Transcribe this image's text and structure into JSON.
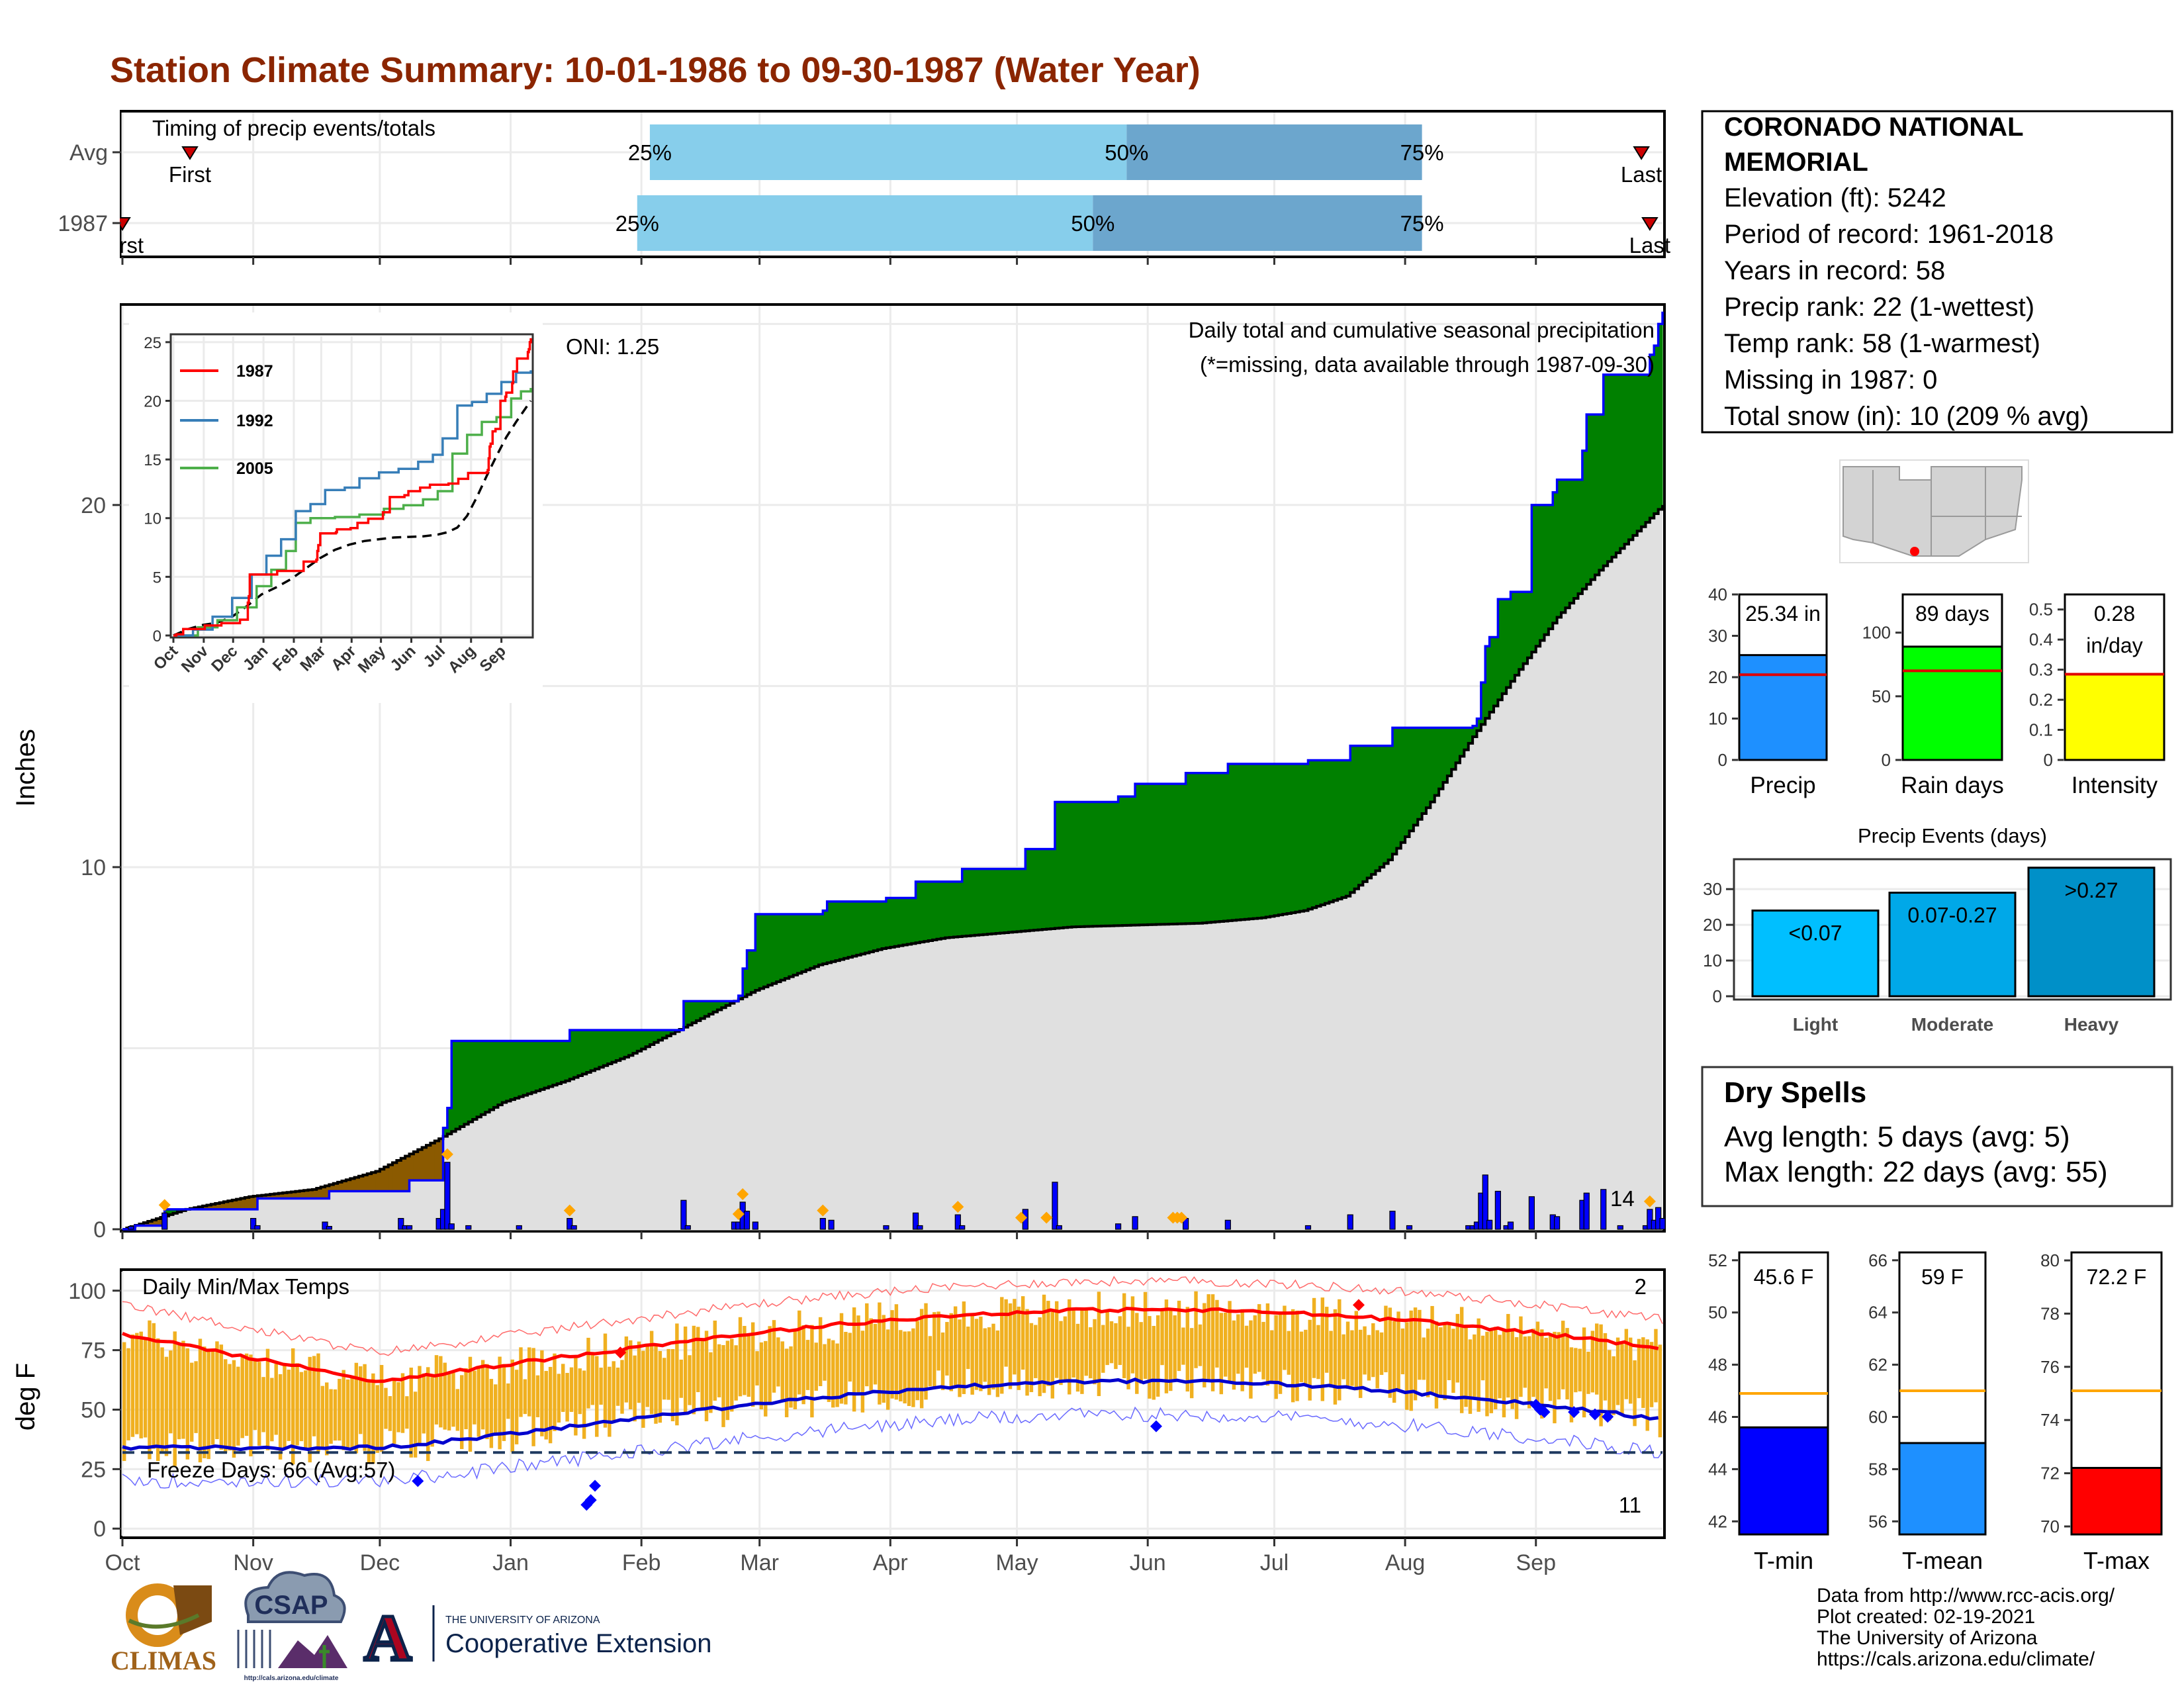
{
  "title": "Station Climate Summary: 10-01-1986 to 09-30-1987 (Water Year)",
  "colors": {
    "title": "#8B2500",
    "above_avg": "#008000",
    "below_avg": "#8B5A00",
    "climatology": "#E0E0E0",
    "daily_bar": "#0000FF",
    "pct_light": "#87CEEB",
    "pct_dark": "#6CA6CD",
    "temp_bar": "#F0B020",
    "tmax_avg": "#FF0000",
    "tmin_avg": "#0000CD",
    "dry_spells": "#B22222"
  },
  "station": {
    "name_line1": "CORONADO NATIONAL",
    "name_line2": "MEMORIAL",
    "lines": [
      "Elevation (ft): 5242",
      "Period of record: 1961-2018",
      "Years in record: 58",
      "Precip rank: 22 (1-wettest)",
      "Temp rank: 58 (1-warmest)",
      "Missing in 1987: 0",
      "Total snow (in): 10 (209 % avg)"
    ]
  },
  "timing": {
    "title": "Timing of precip events/totals",
    "rows": [
      {
        "label": "Avg",
        "first_doy": 16,
        "first_label": "First",
        "last_doy": 360,
        "last_label": "Last",
        "p25_doy": 125,
        "p50_doy": 238,
        "p75_doy": 308
      },
      {
        "label": "1987",
        "first_doy": 0,
        "first_label": "First",
        "last_doy": 362,
        "last_label": "Last",
        "p25_doy": 122,
        "p50_doy": 230,
        "p75_doy": 308
      }
    ],
    "pct_labels": [
      "25%",
      "50%",
      "75%"
    ]
  },
  "precip_panel": {
    "ylabel": "Inches",
    "ylim": [
      0,
      25.5
    ],
    "yticks": [
      0,
      10,
      20
    ],
    "label_main": "Daily total and cumulative seasonal precipitation",
    "label_missing": "(*=missing, data available through 1987-09-30)",
    "oni": "ONI: 1.25",
    "count_label": "14",
    "cumulative_observed": [
      [
        0,
        0
      ],
      [
        10,
        0.55
      ],
      [
        31,
        0.55
      ],
      [
        32,
        0.85
      ],
      [
        48,
        0.85
      ],
      [
        49,
        1.05
      ],
      [
        80,
        1.05
      ],
      [
        81,
        2.8
      ],
      [
        75,
        2.8
      ],
      [
        76,
        3.35
      ],
      [
        77,
        5.2
      ],
      [
        105,
        5.2
      ],
      [
        106,
        5.5
      ],
      [
        107,
        5.5
      ],
      [
        108,
        5.5
      ],
      [
        132,
        5.5
      ],
      [
        133,
        5.5
      ],
      [
        107,
        5.5
      ],
      [
        108,
        6.3
      ],
      [
        124,
        6.3
      ],
      [
        125,
        6.3
      ],
      [
        126,
        6.3
      ],
      [
        145,
        6.3
      ],
      [
        146,
        6.3
      ],
      [
        147,
        6.3
      ],
      [
        146,
        6.45
      ],
      [
        147,
        7.2
      ],
      [
        148,
        7.7
      ],
      [
        149,
        7.7
      ],
      [
        150,
        8.7
      ],
      [
        165,
        8.7
      ],
      [
        166,
        8.75
      ],
      [
        167,
        8.8
      ],
      [
        168,
        9.05
      ],
      [
        180,
        9.05
      ],
      [
        181,
        9.15
      ],
      [
        187,
        9.15
      ],
      [
        188,
        9.6
      ],
      [
        198,
        9.6
      ],
      [
        199,
        9.95
      ],
      [
        213,
        9.95
      ],
      [
        214,
        10.5
      ],
      [
        220,
        10.5
      ],
      [
        221,
        11.8
      ],
      [
        235,
        11.8
      ],
      [
        236,
        11.95
      ],
      [
        239,
        11.95
      ],
      [
        240,
        12.3
      ],
      [
        247,
        12.3
      ],
      [
        248,
        12.3
      ],
      [
        249,
        12.3
      ],
      [
        250,
        12.3
      ],
      [
        251,
        12.35
      ],
      [
        252,
        12.6
      ],
      [
        261,
        12.6
      ],
      [
        262,
        12.85
      ],
      [
        280,
        12.85
      ],
      [
        281,
        12.95
      ],
      [
        290,
        12.95
      ],
      [
        291,
        13.35
      ],
      [
        300,
        13.35
      ],
      [
        301,
        13.85
      ],
      [
        319,
        13.85
      ],
      [
        320,
        13.9
      ],
      [
        321,
        13.9
      ],
      [
        322,
        15.1
      ],
      [
        323,
        16.1
      ],
      [
        324,
        16.35
      ],
      [
        325,
        16.35
      ],
      [
        326,
        17.4
      ],
      [
        328,
        17.4
      ],
      [
        329,
        17.6
      ],
      [
        333,
        17.6
      ],
      [
        334,
        20.0
      ],
      [
        338,
        20.0
      ],
      [
        339,
        20.35
      ],
      [
        340,
        20.7
      ],
      [
        345,
        20.7
      ],
      [
        346,
        21.5
      ],
      [
        347,
        22.5
      ],
      [
        349,
        22.5
      ],
      [
        350,
        22.5
      ],
      [
        351,
        23.6
      ],
      [
        361,
        23.6
      ],
      [
        362,
        24.15
      ],
      [
        363,
        24.15
      ],
      [
        364,
        25.0
      ],
      [
        365,
        25.34
      ]
    ],
    "cumulative_observed_clean": [
      [
        0,
        0
      ],
      [
        3,
        0.1
      ],
      [
        10,
        0.55
      ],
      [
        31,
        0.55
      ],
      [
        32,
        0.85
      ],
      [
        48,
        0.85
      ],
      [
        49,
        1.05
      ],
      [
        67,
        1.05
      ],
      [
        68,
        1.35
      ],
      [
        75,
        1.35
      ],
      [
        76,
        2.8
      ],
      [
        77,
        3.35
      ],
      [
        78,
        5.2
      ],
      [
        105,
        5.2
      ],
      [
        106,
        5.5
      ],
      [
        132,
        5.5
      ],
      [
        133,
        6.3
      ],
      [
        145,
        6.3
      ],
      [
        146,
        6.45
      ],
      [
        147,
        7.2
      ],
      [
        148,
        7.7
      ],
      [
        149,
        7.7
      ],
      [
        150,
        8.7
      ],
      [
        165,
        8.7
      ],
      [
        166,
        8.8
      ],
      [
        167,
        9.05
      ],
      [
        180,
        9.05
      ],
      [
        181,
        9.15
      ],
      [
        187,
        9.15
      ],
      [
        188,
        9.6
      ],
      [
        198,
        9.6
      ],
      [
        199,
        9.95
      ],
      [
        213,
        9.95
      ],
      [
        214,
        10.5
      ],
      [
        220,
        10.5
      ],
      [
        221,
        11.8
      ],
      [
        235,
        11.8
      ],
      [
        236,
        11.95
      ],
      [
        239,
        11.95
      ],
      [
        240,
        12.3
      ],
      [
        251,
        12.3
      ],
      [
        252,
        12.6
      ],
      [
        261,
        12.6
      ],
      [
        262,
        12.85
      ],
      [
        280,
        12.85
      ],
      [
        281,
        12.95
      ],
      [
        290,
        12.95
      ],
      [
        291,
        13.35
      ],
      [
        300,
        13.35
      ],
      [
        301,
        13.85
      ],
      [
        319,
        13.85
      ],
      [
        320,
        13.9
      ],
      [
        321,
        14.1
      ],
      [
        322,
        15.1
      ],
      [
        323,
        16.1
      ],
      [
        324,
        16.35
      ],
      [
        325,
        16.35
      ],
      [
        326,
        17.4
      ],
      [
        328,
        17.4
      ],
      [
        329,
        17.6
      ],
      [
        333,
        17.6
      ],
      [
        334,
        20.0
      ],
      [
        338,
        20.0
      ],
      [
        339,
        20.35
      ],
      [
        340,
        20.7
      ],
      [
        345,
        20.7
      ],
      [
        346,
        21.5
      ],
      [
        347,
        22.5
      ],
      [
        350,
        22.5
      ],
      [
        351,
        23.6
      ],
      [
        361,
        23.6
      ],
      [
        362,
        24.15
      ],
      [
        363,
        24.4
      ],
      [
        364,
        25.0
      ],
      [
        365,
        25.34
      ]
    ],
    "cumulative_average": [
      [
        0,
        0
      ],
      [
        15,
        0.55
      ],
      [
        30,
        0.9
      ],
      [
        45,
        1.1
      ],
      [
        60,
        1.6
      ],
      [
        75,
        2.5
      ],
      [
        90,
        3.5
      ],
      [
        105,
        4.1
      ],
      [
        120,
        4.8
      ],
      [
        135,
        5.7
      ],
      [
        150,
        6.6
      ],
      [
        165,
        7.3
      ],
      [
        180,
        7.75
      ],
      [
        195,
        8.05
      ],
      [
        210,
        8.2
      ],
      [
        225,
        8.35
      ],
      [
        240,
        8.4
      ],
      [
        255,
        8.45
      ],
      [
        270,
        8.6
      ],
      [
        280,
        8.8
      ],
      [
        290,
        9.2
      ],
      [
        300,
        10.2
      ],
      [
        310,
        11.8
      ],
      [
        320,
        13.6
      ],
      [
        330,
        15.3
      ],
      [
        340,
        16.9
      ],
      [
        350,
        18.2
      ],
      [
        360,
        19.4
      ],
      [
        365,
        20.0
      ]
    ],
    "daily_bars": [
      [
        2,
        0.08
      ],
      [
        10,
        0.45
      ],
      [
        31,
        0.3
      ],
      [
        32,
        0.1
      ],
      [
        48,
        0.2
      ],
      [
        49,
        0.08
      ],
      [
        66,
        0.3
      ],
      [
        67,
        0.1
      ],
      [
        68,
        0.1
      ],
      [
        75,
        0.3
      ],
      [
        76,
        0.55
      ],
      [
        77,
        1.85
      ],
      [
        78,
        0.15
      ],
      [
        82,
        0.1
      ],
      [
        94,
        0.1
      ],
      [
        106,
        0.3
      ],
      [
        107,
        0.1
      ],
      [
        133,
        0.8
      ],
      [
        134,
        0.1
      ],
      [
        145,
        0.2
      ],
      [
        146,
        0.2
      ],
      [
        147,
        0.75
      ],
      [
        148,
        0.5
      ],
      [
        150,
        0.2
      ],
      [
        166,
        0.3
      ],
      [
        168,
        0.25
      ],
      [
        181,
        0.1
      ],
      [
        188,
        0.45
      ],
      [
        189,
        0.1
      ],
      [
        198,
        0.4
      ],
      [
        199,
        0.1
      ],
      [
        214,
        0.55
      ],
      [
        221,
        1.3
      ],
      [
        222,
        0.1
      ],
      [
        236,
        0.15
      ],
      [
        240,
        0.35
      ],
      [
        252,
        0.3
      ],
      [
        262,
        0.25
      ],
      [
        281,
        0.1
      ],
      [
        291,
        0.4
      ],
      [
        301,
        0.5
      ],
      [
        305,
        0.1
      ],
      [
        319,
        0.1
      ],
      [
        320,
        0.1
      ],
      [
        321,
        0.2
      ],
      [
        322,
        1.0
      ],
      [
        323,
        1.5
      ],
      [
        324,
        0.25
      ],
      [
        326,
        1.05
      ],
      [
        328,
        0.1
      ],
      [
        329,
        0.2
      ],
      [
        334,
        0.9
      ],
      [
        339,
        0.4
      ],
      [
        340,
        0.35
      ],
      [
        346,
        0.8
      ],
      [
        347,
        1.0
      ],
      [
        351,
        1.1
      ],
      [
        355,
        0.1
      ],
      [
        361,
        0.1
      ],
      [
        362,
        0.55
      ],
      [
        363,
        0.25
      ],
      [
        364,
        0.6
      ],
      [
        365,
        0.3
      ]
    ],
    "snow_marks": [
      10,
      77,
      106,
      146,
      147,
      166,
      198,
      213,
      219,
      249,
      250,
      251,
      362
    ]
  },
  "inset": {
    "legend": [
      "1987",
      "1992",
      "2005"
    ],
    "colors": [
      "#FF0000",
      "#377EB8",
      "#4DAF4A"
    ],
    "xticks": [
      "Oct",
      "Nov",
      "Dec",
      "Jan",
      "Feb",
      "Mar",
      "Apr",
      "May",
      "Jun",
      "Jul",
      "Aug",
      "Sep"
    ],
    "yticks": [
      0,
      5,
      10,
      15,
      20,
      25
    ],
    "ylim": [
      0,
      25.5
    ]
  },
  "temp_panel": {
    "title": "Daily Min/Max Temps",
    "ylabel": "deg F",
    "ylim": [
      -3,
      108
    ],
    "yticks": [
      0,
      25,
      50,
      75,
      100
    ],
    "freeze_label": "Freeze Days: 66 (Avg:57)",
    "freeze_line": 32,
    "record_high_count": "2",
    "record_low_count": "11"
  },
  "x_axis": {
    "months": [
      "Oct",
      "Nov",
      "Dec",
      "Jan",
      "Feb",
      "Mar",
      "Apr",
      "May",
      "Jun",
      "Jul",
      "Aug",
      "Sep"
    ],
    "month_start_doy": [
      0,
      31,
      61,
      92,
      123,
      151,
      182,
      212,
      243,
      273,
      304,
      335
    ]
  },
  "summary_bars": [
    {
      "name": "Precip",
      "value_label": "25.34 in",
      "value": 25.34,
      "avg": 20.6,
      "ylim": [
        0,
        40
      ],
      "yticks": [
        0,
        10,
        20,
        30,
        40
      ],
      "color": "#1E90FF"
    },
    {
      "name": "Rain days",
      "value_label": "89 days",
      "value": 89,
      "avg": 70,
      "ylim": [
        0,
        130
      ],
      "yticks": [
        0,
        50,
        100
      ],
      "color": "#00FF00"
    },
    {
      "name": "Intensity",
      "value_label": "0.28",
      "value_label2": "in/day",
      "value": 0.285,
      "avg": 0.285,
      "ylim": [
        0,
        0.55
      ],
      "yticks": [
        0.0,
        0.1,
        0.2,
        0.3,
        0.4,
        0.5
      ],
      "color": "#FFFF00"
    }
  ],
  "precip_events": {
    "title": "Precip Events (days)",
    "categories": [
      "Light",
      "Moderate",
      "Heavy"
    ],
    "bar_labels": [
      "<0.07",
      "0.07-0.27",
      ">0.27"
    ],
    "values": [
      24,
      29,
      36
    ],
    "colors": [
      "#00BFFF",
      "#00A8E8",
      "#0090C8"
    ],
    "ylim": [
      0,
      38
    ],
    "yticks": [
      0,
      10,
      20,
      30
    ]
  },
  "dry_spells": {
    "title": "Dry Spells",
    "avg_line": "Avg length: 5 days (avg: 5)",
    "max_line": "Max length: 22 days (avg: 55)"
  },
  "temp_bars": [
    {
      "name": "T-min",
      "value_label": "45.6 F",
      "value": 45.6,
      "avg": 46.9,
      "ylim": [
        41.5,
        52.3
      ],
      "yticks": [
        42,
        44,
        46,
        48,
        50,
        52
      ],
      "color": "#0000FF"
    },
    {
      "name": "T-mean",
      "value_label": "59 F",
      "value": 59.0,
      "avg": 61.0,
      "ylim": [
        55.5,
        66.3
      ],
      "yticks": [
        56,
        58,
        60,
        62,
        64,
        66
      ],
      "color": "#1E90FF"
    },
    {
      "name": "T-max",
      "value_label": "72.2 F",
      "value": 72.2,
      "avg": 75.1,
      "ylim": [
        69.7,
        80.3
      ],
      "yticks": [
        70,
        72,
        74,
        76,
        78,
        80
      ],
      "color": "#FF0000"
    }
  ],
  "footer": {
    "lines": [
      "Data from http://www.rcc-acis.org/",
      "Plot created: 02-19-2021",
      "The University of Arizona",
      "https://cals.arizona.edu/climate/"
    ],
    "logos": {
      "climas": "CLIMAS",
      "csap": "CSAP",
      "csap_url": "http://cals.arizona.edu/climate",
      "ua_line1": "THE UNIVERSITY OF ARIZONA",
      "ua_line2": "Cooperative Extension",
      "ua_mark": "A"
    }
  }
}
